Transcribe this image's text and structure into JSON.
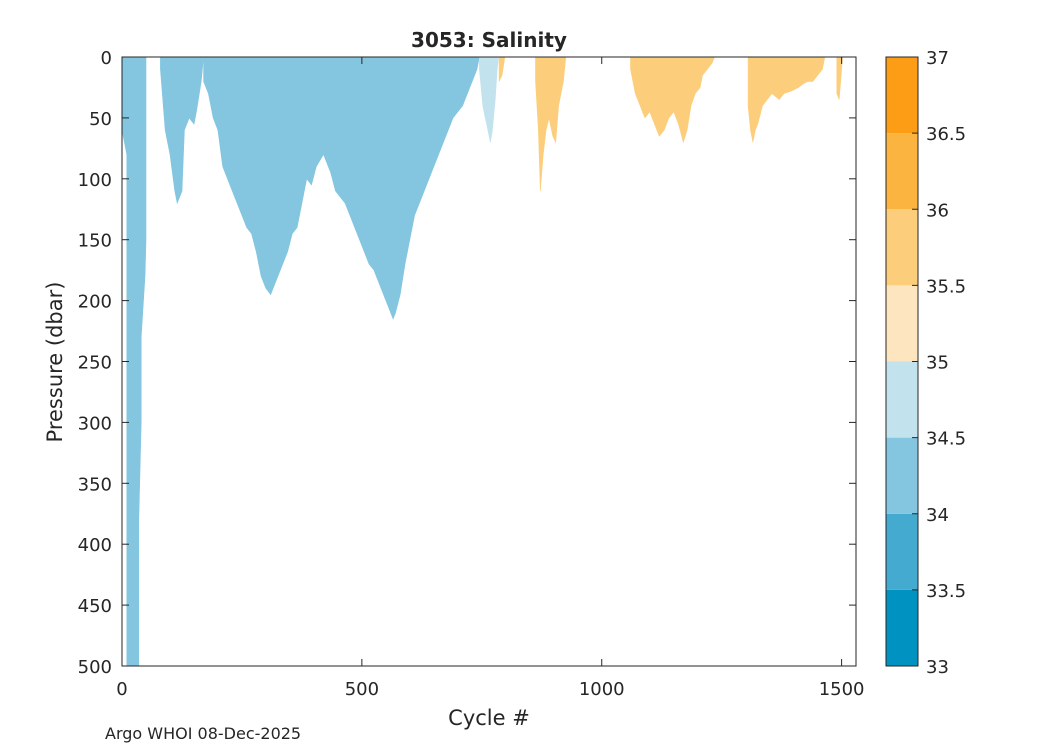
{
  "chart_data": {
    "type": "heatmap",
    "title": "3053:  Salinity",
    "xlabel": "Cycle #",
    "ylabel": "Pressure (dbar)",
    "xlim": [
      0,
      1530
    ],
    "ylim": [
      0,
      500
    ],
    "y_reversed": true,
    "xticks": [
      0,
      500,
      1000,
      1500
    ],
    "yticks": [
      0,
      50,
      100,
      150,
      200,
      250,
      300,
      350,
      400,
      450,
      500
    ],
    "colorbar": {
      "range": [
        33,
        37
      ],
      "ticks": [
        33,
        33.5,
        34,
        34.5,
        35,
        35.5,
        36,
        36.5,
        37
      ],
      "bins": [
        {
          "from": 33.0,
          "to": 33.5,
          "color": "#0093c1"
        },
        {
          "from": 33.5,
          "to": 34.0,
          "color": "#44aacf"
        },
        {
          "from": 34.0,
          "to": 34.5,
          "color": "#84c5df"
        },
        {
          "from": 34.5,
          "to": 35.0,
          "color": "#c2e2ed"
        },
        {
          "from": 35.0,
          "to": 35.5,
          "color": "#fde6bf"
        },
        {
          "from": 35.5,
          "to": 36.0,
          "color": "#fcce7c"
        },
        {
          "from": 36.0,
          "to": 36.5,
          "color": "#fbb440"
        },
        {
          "from": 36.5,
          "to": 37.0,
          "color": "#fc9d15"
        }
      ]
    },
    "regions": [
      {
        "class": "34-34.5",
        "color": "#84c5df",
        "profile": [
          [
            0,
            0
          ],
          [
            0,
            60
          ],
          [
            10,
            80
          ],
          [
            10,
            500
          ],
          [
            35,
            500
          ],
          [
            35,
            380
          ],
          [
            40,
            300
          ],
          [
            40,
            230
          ],
          [
            48,
            180
          ],
          [
            50,
            150
          ],
          [
            50,
            0
          ]
        ]
      },
      {
        "class": "34-34.5",
        "color": "#84c5df",
        "profile": [
          [
            80,
            0
          ],
          [
            80,
            10
          ],
          [
            90,
            60
          ],
          [
            95,
            70
          ],
          [
            100,
            80
          ],
          [
            110,
            110
          ],
          [
            115,
            120
          ],
          [
            125,
            110
          ],
          [
            130,
            60
          ],
          [
            140,
            50
          ],
          [
            150,
            55
          ],
          [
            155,
            45
          ],
          [
            165,
            20
          ],
          [
            170,
            0
          ]
        ]
      },
      {
        "class": "34-34.5",
        "color": "#84c5df",
        "profile": [
          [
            170,
            0
          ],
          [
            170,
            20
          ],
          [
            180,
            30
          ],
          [
            190,
            50
          ],
          [
            200,
            60
          ],
          [
            210,
            90
          ],
          [
            220,
            100
          ],
          [
            230,
            110
          ],
          [
            240,
            120
          ],
          [
            250,
            130
          ],
          [
            260,
            140
          ],
          [
            270,
            145
          ],
          [
            280,
            160
          ],
          [
            290,
            180
          ],
          [
            300,
            190
          ],
          [
            310,
            195
          ],
          [
            320,
            185
          ],
          [
            330,
            175
          ],
          [
            345,
            160
          ],
          [
            355,
            145
          ],
          [
            365,
            140
          ],
          [
            375,
            120
          ],
          [
            385,
            100
          ],
          [
            395,
            105
          ],
          [
            405,
            90
          ],
          [
            420,
            80
          ],
          [
            435,
            95
          ],
          [
            445,
            110
          ],
          [
            455,
            115
          ],
          [
            465,
            120
          ],
          [
            475,
            130
          ],
          [
            485,
            140
          ],
          [
            495,
            150
          ],
          [
            505,
            160
          ],
          [
            515,
            170
          ],
          [
            525,
            175
          ],
          [
            535,
            185
          ],
          [
            545,
            195
          ],
          [
            555,
            205
          ],
          [
            565,
            215
          ],
          [
            570,
            210
          ],
          [
            580,
            195
          ],
          [
            590,
            170
          ],
          [
            600,
            150
          ],
          [
            610,
            130
          ],
          [
            620,
            120
          ],
          [
            630,
            110
          ],
          [
            640,
            100
          ],
          [
            650,
            90
          ],
          [
            660,
            80
          ],
          [
            670,
            70
          ],
          [
            680,
            60
          ],
          [
            690,
            50
          ],
          [
            700,
            45
          ],
          [
            710,
            40
          ],
          [
            720,
            30
          ],
          [
            730,
            20
          ],
          [
            740,
            10
          ],
          [
            745,
            0
          ]
        ]
      },
      {
        "class": "34.5-35",
        "color": "#c2e2ed",
        "profile": [
          [
            745,
            0
          ],
          [
            745,
            10
          ],
          [
            752,
            40
          ],
          [
            757,
            50
          ],
          [
            760,
            55
          ],
          [
            768,
            70
          ],
          [
            772,
            60
          ],
          [
            778,
            35
          ],
          [
            782,
            10
          ],
          [
            785,
            0
          ]
        ]
      },
      {
        "class": "35.5-36",
        "color": "#fcce7c",
        "profile": [
          [
            786,
            0
          ],
          [
            786,
            20
          ],
          [
            792,
            15
          ],
          [
            796,
            5
          ],
          [
            798,
            0
          ]
        ]
      },
      {
        "class": "35.5-36",
        "color": "#fcce7c",
        "profile": [
          [
            862,
            0
          ],
          [
            862,
            20
          ],
          [
            868,
            60
          ],
          [
            872,
            110
          ],
          [
            878,
            80
          ],
          [
            884,
            60
          ],
          [
            890,
            50
          ],
          [
            898,
            65
          ],
          [
            904,
            70
          ],
          [
            910,
            40
          ],
          [
            920,
            20
          ],
          [
            925,
            0
          ]
        ]
      },
      {
        "class": "35.5-36",
        "color": "#fcce7c",
        "profile": [
          [
            1060,
            0
          ],
          [
            1060,
            10
          ],
          [
            1070,
            30
          ],
          [
            1080,
            40
          ],
          [
            1090,
            50
          ],
          [
            1100,
            45
          ],
          [
            1110,
            55
          ],
          [
            1120,
            65
          ],
          [
            1130,
            60
          ],
          [
            1140,
            50
          ],
          [
            1150,
            45
          ],
          [
            1160,
            55
          ],
          [
            1170,
            70
          ],
          [
            1178,
            60
          ],
          [
            1186,
            40
          ],
          [
            1195,
            30
          ],
          [
            1205,
            25
          ],
          [
            1210,
            15
          ],
          [
            1220,
            10
          ],
          [
            1230,
            5
          ],
          [
            1235,
            0
          ]
        ]
      },
      {
        "class": "35.5-36",
        "color": "#fcce7c",
        "profile": [
          [
            1305,
            0
          ],
          [
            1305,
            40
          ],
          [
            1310,
            60
          ],
          [
            1315,
            70
          ],
          [
            1320,
            60
          ],
          [
            1325,
            55
          ],
          [
            1335,
            40
          ],
          [
            1345,
            35
          ],
          [
            1355,
            30
          ],
          [
            1370,
            35
          ],
          [
            1380,
            30
          ],
          [
            1395,
            28
          ],
          [
            1410,
            25
          ],
          [
            1420,
            22
          ],
          [
            1430,
            20
          ],
          [
            1440,
            20
          ],
          [
            1450,
            15
          ],
          [
            1460,
            10
          ],
          [
            1465,
            0
          ]
        ]
      },
      {
        "class": "35.5-36",
        "color": "#fcce7c",
        "profile": [
          [
            1490,
            0
          ],
          [
            1490,
            30
          ],
          [
            1495,
            35
          ],
          [
            1500,
            10
          ],
          [
            1502,
            0
          ]
        ]
      }
    ]
  },
  "footer": {
    "note": "Argo WHOI 08-Dec-2025"
  }
}
